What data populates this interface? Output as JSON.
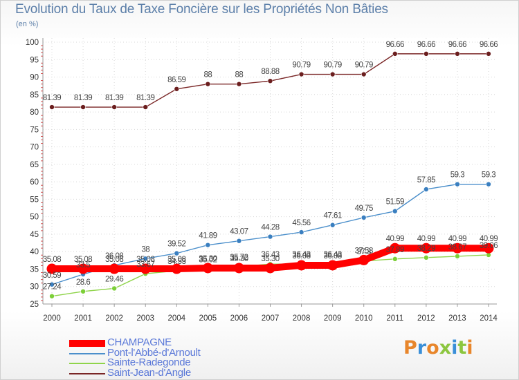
{
  "header": {
    "title": "Evolution du Taux de Taxe Foncière sur les Propriétés Non Bâties",
    "subtitle": "(en %)"
  },
  "brand": {
    "text": "Proxiti",
    "colors": [
      "#e8862b",
      "#3a8fd8",
      "#e8862b",
      "#8cc63f",
      "#3a8fd8",
      "#8cc63f",
      "#e8862b"
    ]
  },
  "chart_data": {
    "type": "line",
    "title": "Evolution du Taux de Taxe Foncière sur les Propriétés Non Bâties",
    "ylabel": "(en %)",
    "xlabel": "",
    "ylim": [
      25,
      100
    ],
    "yticks": [
      25,
      30,
      35,
      40,
      45,
      50,
      55,
      60,
      65,
      70,
      75,
      80,
      85,
      90,
      95,
      100
    ],
    "x": [
      "2000",
      "2001",
      "2002",
      "2003",
      "2004",
      "2005",
      "2006",
      "2007",
      "2008",
      "2009",
      "2010",
      "2011",
      "2012",
      "2013",
      "2014"
    ],
    "grid": true,
    "legend_position": "bottom-left",
    "series": [
      {
        "name": "CHAMPAGNE",
        "color": "#ff0000",
        "values": [
          35.08,
          35.08,
          35.08,
          35.08,
          35.08,
          35.3,
          35.3,
          35.3,
          36.08,
          36.08,
          37.58,
          40.99,
          40.99,
          40.99,
          40.99
        ],
        "labels": [
          "35.08",
          "35.08",
          "35.08",
          "35.08",
          "35.08",
          "35.30",
          "35.30",
          "35.30",
          "36.08",
          "36.08",
          "37.58",
          "40.99",
          "40.99",
          "40.99",
          "40.99"
        ]
      },
      {
        "name": "Pont-l'Abbé-d'Arnoult",
        "color": "#4b8fcb",
        "values": [
          30.59,
          33.5,
          36.08,
          38,
          39.52,
          41.89,
          43.07,
          44.28,
          45.56,
          47.61,
          49.75,
          51.59,
          57.85,
          59.3,
          59.3
        ],
        "labels": [
          "30.59",
          "33.5",
          "36.08",
          "38",
          "39.52",
          "41.89",
          "43.07",
          "44.28",
          "45.56",
          "47.61",
          "49.75",
          "51.59",
          "57.85",
          "59.3",
          "59.3"
        ]
      },
      {
        "name": "Sainte-Radegonde",
        "color": "#8fd44a",
        "values": [
          27.24,
          28.6,
          29.46,
          33.67,
          34.53,
          35.02,
          35.72,
          36.43,
          36.43,
          36.43,
          37.3,
          37.89,
          38.29,
          38.67,
          39.06
        ],
        "labels": [
          "27.24",
          "28.6",
          "29.46",
          "33.67",
          "34.53",
          "35.02",
          "35.72",
          "36.43",
          "36.43",
          "36.43",
          "37.3",
          "37.89",
          "38.29",
          "38.67",
          "39.06"
        ]
      },
      {
        "name": "Saint-Jean-d'Angle",
        "color": "#7a2626",
        "values": [
          81.39,
          81.39,
          81.39,
          81.39,
          86.59,
          88,
          88,
          88.88,
          90.79,
          90.79,
          90.79,
          96.66,
          96.66,
          96.66,
          96.66
        ],
        "labels": [
          "81.39",
          "81.39",
          "81.39",
          "81.39",
          "86.59",
          "88",
          "88",
          "88.88",
          "90.79",
          "90.79",
          "90.79",
          "96.66",
          "96.66",
          "96.66",
          "96.66"
        ]
      }
    ]
  }
}
